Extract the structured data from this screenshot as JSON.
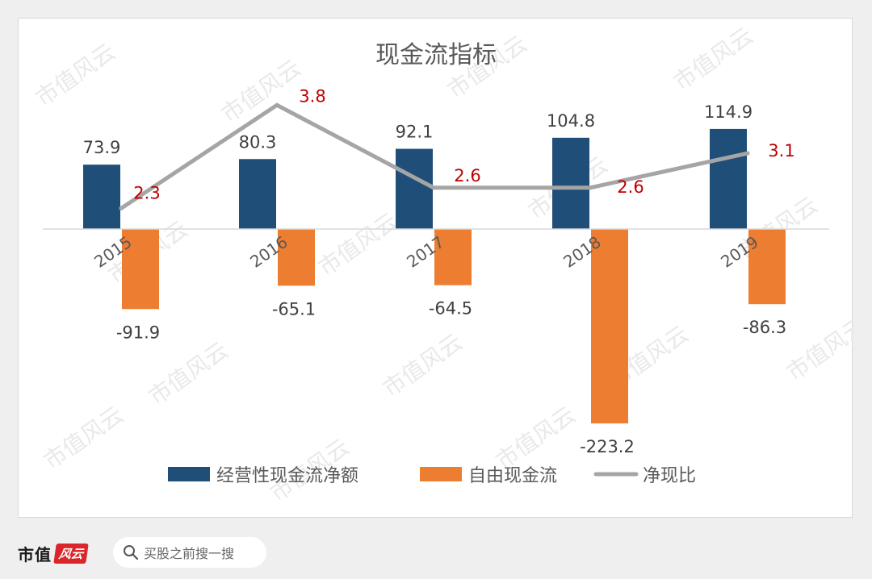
{
  "watermark": "市值风云",
  "footer": {
    "logo_text": "市值",
    "logo_mark": "风云",
    "search_placeholder": "买股之前搜一搜"
  },
  "chart_data": {
    "type": "bar",
    "title": "现金流指标",
    "categories": [
      "2015",
      "2016",
      "2017",
      "2018",
      "2019"
    ],
    "series": [
      {
        "name": "经营性现金流净额",
        "type": "bar",
        "color": "#1f4e79",
        "values": [
          73.9,
          80.3,
          92.1,
          104.8,
          114.9
        ]
      },
      {
        "name": "自由现金流",
        "type": "bar",
        "color": "#ed7d31",
        "values": [
          -91.9,
          -65.1,
          -64.5,
          -223.2,
          -86.3
        ]
      },
      {
        "name": "净现比",
        "type": "line",
        "color": "#a5a5a5",
        "secondary_axis": true,
        "values": [
          2.3,
          3.8,
          2.6,
          2.6,
          3.1
        ]
      }
    ],
    "labels": {
      "ocf": [
        "73.9",
        "80.3",
        "92.1",
        "104.8",
        "114.9"
      ],
      "fcf": [
        "-91.9",
        "-65.1",
        "-64.5",
        "-223.2",
        "-86.3"
      ],
      "ratio": [
        "2.3",
        "3.8",
        "2.6",
        "2.6",
        "3.1"
      ]
    },
    "ratio_label_color": "#c00000",
    "legend_position": "bottom",
    "grid": false
  }
}
